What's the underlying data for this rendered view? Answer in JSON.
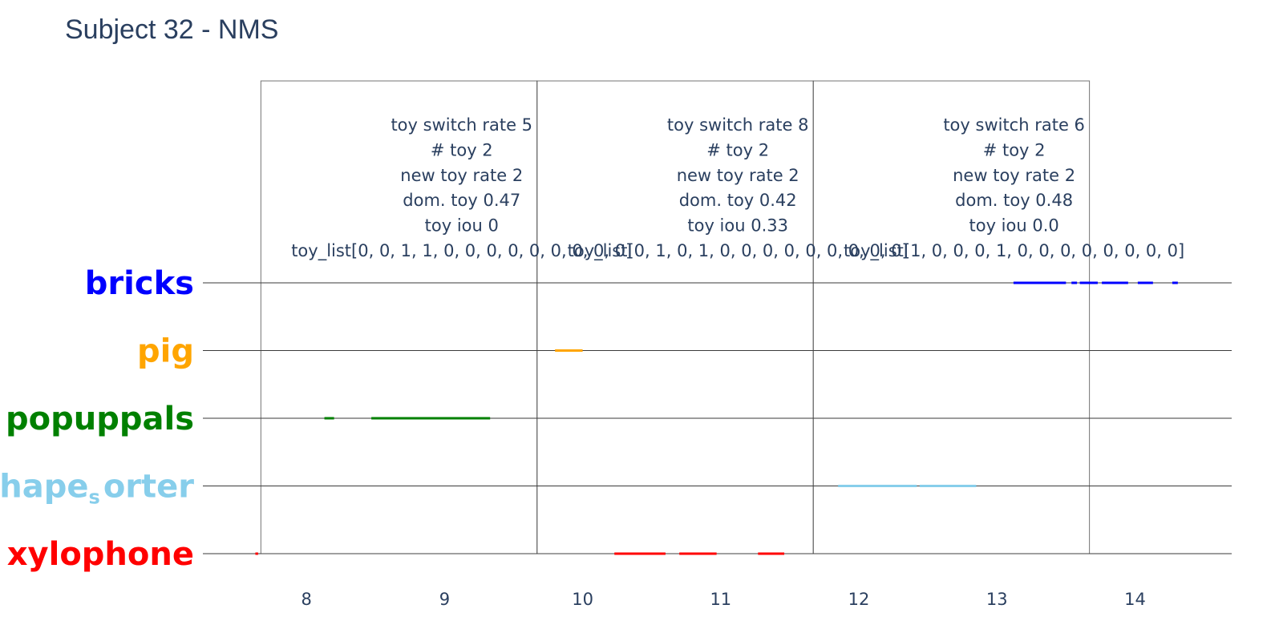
{
  "chart_data": {
    "type": "timeline",
    "title": "Subject 32 - NMS",
    "categories": [
      "bricks",
      "pig",
      "popuppals",
      "shapes_orter",
      "xylophone"
    ],
    "category_label_parts": {
      "bricks": [
        "bricks"
      ],
      "pig": [
        "pig"
      ],
      "popuppals": [
        "popuppals"
      ],
      "shapes_orter": [
        "shape",
        "s",
        "orter"
      ],
      "xylophone": [
        "xylophone"
      ]
    },
    "category_colors": {
      "bricks": "#0000ff",
      "pig": "#ffa500",
      "popuppals": "#008000",
      "shapes_orter": "#87ceeb",
      "xylophone": "#ff0000"
    },
    "xlim": [
      7.25,
      14.7
    ],
    "xticks": [
      8,
      9,
      10,
      11,
      12,
      13,
      14
    ],
    "series": [
      {
        "toy": "bricks",
        "segments": [
          [
            13.12,
            13.5
          ],
          [
            13.54,
            13.58
          ],
          [
            13.6,
            13.73
          ],
          [
            13.76,
            13.95
          ],
          [
            14.02,
            14.13
          ],
          [
            14.27,
            14.31
          ]
        ]
      },
      {
        "toy": "pig",
        "segments": [
          [
            9.8,
            10.0
          ]
        ]
      },
      {
        "toy": "popuppals",
        "segments": [
          [
            8.13,
            8.2
          ],
          [
            8.47,
            9.33
          ]
        ]
      },
      {
        "toy": "shapes_orter",
        "segments": [
          [
            11.85,
            12.42
          ],
          [
            12.44,
            12.85
          ]
        ]
      },
      {
        "toy": "xylophone",
        "segments": [
          [
            7.63,
            7.65
          ],
          [
            10.23,
            10.6
          ],
          [
            10.7,
            10.97
          ],
          [
            11.27,
            11.46
          ]
        ]
      }
    ],
    "windows": [
      {
        "start": 7.67,
        "end": 9.67
      },
      {
        "start": 9.67,
        "end": 11.67
      },
      {
        "start": 11.67,
        "end": 13.67
      }
    ],
    "annotations": [
      {
        "lines": [
          "toy switch rate 5",
          "# toy 2",
          "new toy rate 2",
          "dom. toy 0.47",
          "toy iou 0",
          "toy_list[0, 0, 1, 1, 0, 0, 0, 0, 0, 0, 0, 0, 0]"
        ]
      },
      {
        "lines": [
          "toy switch rate 8",
          "# toy 2",
          "new toy rate 2",
          "dom. toy 0.42",
          "toy iou 0.33",
          "toy_list[0, 1, 0, 1, 0, 0, 0, 0, 0, 0, 0, 0, 0]"
        ]
      },
      {
        "lines": [
          "toy switch rate 6",
          "# toy 2",
          "new toy rate 2",
          "dom. toy 0.48",
          "toy iou 0.0",
          "toy_list[1, 0, 0, 0, 1, 0, 0, 0, 0, 0, 0, 0, 0]"
        ]
      }
    ]
  }
}
